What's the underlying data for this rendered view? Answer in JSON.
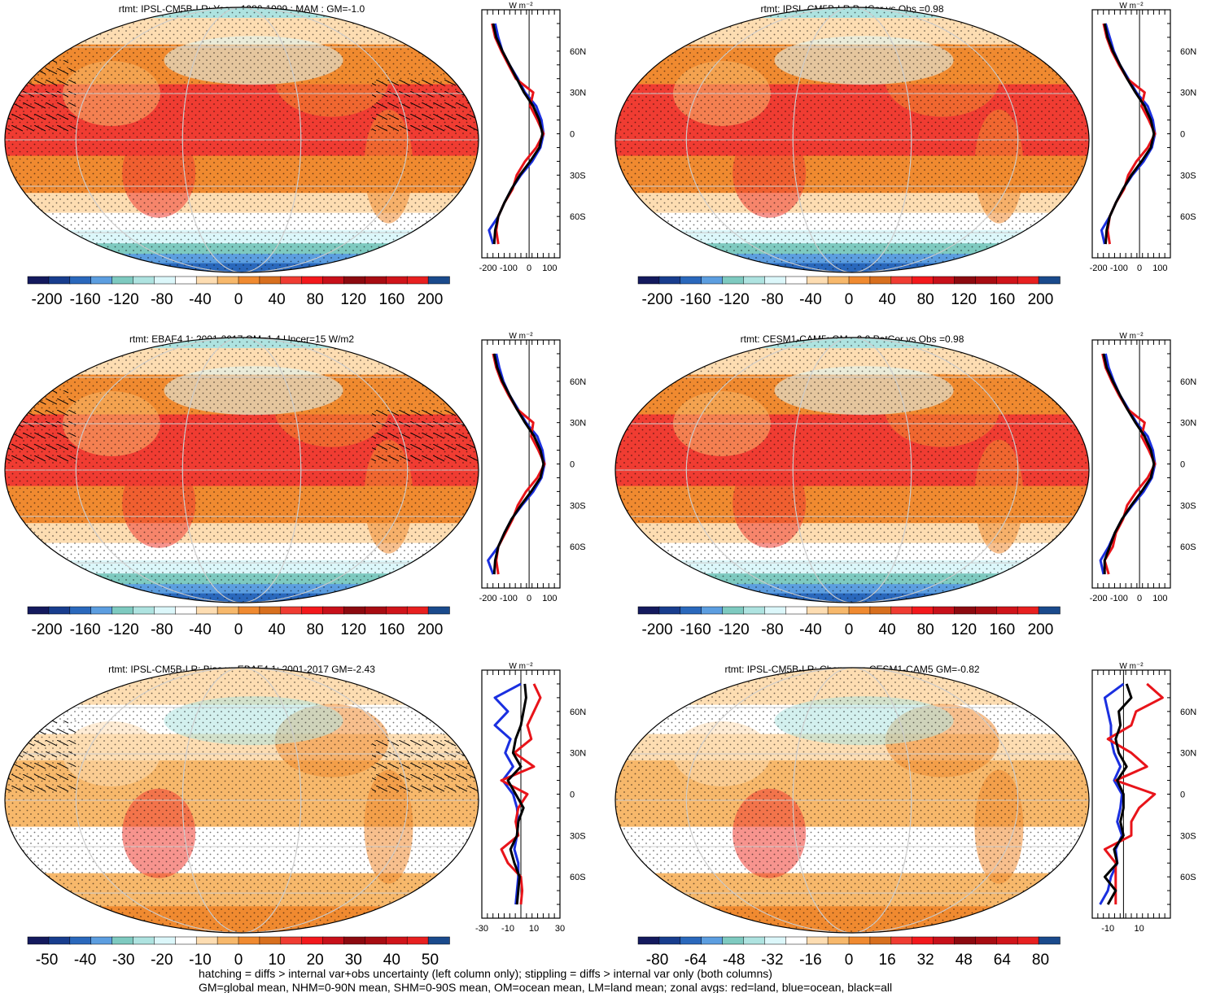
{
  "palette": [
    "#141a5e",
    "#183d8e",
    "#2a68bc",
    "#5c9ee0",
    "#7ecac0",
    "#aee3e0",
    "#dcf7fa",
    "#ffffff",
    "#fdddb2",
    "#f7b86b",
    "#f08a30",
    "#d86f1e",
    "#f03c32",
    "#f3181c",
    "#c8101a",
    "#8c0a10",
    "#a80c12",
    "#d0141a",
    "#e82020",
    "#1a4a8c"
  ],
  "footer": [
    "hatching = diffs > internal var+obs uncertainty (left column only); stippling = diffs > internal var only (both columns)",
    "GM=global mean, NHM=0-90N mean, SHM=0-90S mean, OM=ocean mean, LM=land mean; zonal avgs: red=land, blue=ocean, black=all"
  ],
  "chart_data": [
    {
      "type": "heatmap",
      "title": "rtmt: IPSL-CM5B-LR: Years 1980-1999 : MAM : GM=-1.0",
      "colorbar_ticks": [
        "-200",
        "-160",
        "-120",
        "-80",
        "-40",
        "0",
        "40",
        "80",
        "120",
        "160",
        "200"
      ],
      "colorbar_range": [
        -200,
        200
      ],
      "zonal": {
        "unit": "W m⁻²",
        "lat_ticks": [
          "60N",
          "30N",
          "0",
          "30S",
          "60S"
        ],
        "x_ticks": [
          "-200",
          "-100",
          "0",
          "100"
        ],
        "xlim": [
          -230,
          150
        ],
        "lat": [
          -80,
          -70,
          -60,
          -50,
          -40,
          -30,
          -20,
          -10,
          0,
          10,
          20,
          30,
          40,
          50,
          60,
          70,
          80
        ],
        "all": [
          -170,
          -165,
          -150,
          -120,
          -85,
          -45,
          5,
          50,
          65,
          50,
          20,
          -25,
          -60,
          -95,
          -130,
          -160,
          -175
        ],
        "ocean": [
          -175,
          -195,
          -150,
          -120,
          -85,
          -40,
          15,
          55,
          70,
          60,
          35,
          -20,
          -55,
          -95,
          -130,
          -150,
          -165
        ],
        "land": [
          -150,
          -160,
          -150,
          -120,
          -80,
          -60,
          -20,
          35,
          70,
          40,
          5,
          20,
          -65,
          -100,
          -135,
          -165,
          -180
        ]
      }
    },
    {
      "type": "heatmap",
      "title": "rtmt: IPSL-CM5B-LR PatCor vs Obs =0.98",
      "colorbar_ticks": [
        "-200",
        "-160",
        "-120",
        "-80",
        "-40",
        "0",
        "40",
        "80",
        "120",
        "160",
        "200"
      ],
      "colorbar_range": [
        -200,
        200
      ],
      "zonal": {
        "unit": "W m⁻²",
        "lat_ticks": [
          "60N",
          "30N",
          "0",
          "30S",
          "60S"
        ],
        "x_ticks": [
          "-200",
          "-100",
          "0",
          "100"
        ],
        "xlim": [
          -230,
          150
        ],
        "lat": [
          -80,
          -70,
          -60,
          -50,
          -40,
          -30,
          -20,
          -10,
          0,
          10,
          20,
          30,
          40,
          50,
          60,
          70,
          80
        ],
        "all": [
          -165,
          -160,
          -145,
          -115,
          -80,
          -40,
          10,
          55,
          70,
          55,
          25,
          -20,
          -60,
          -95,
          -130,
          -155,
          -170
        ],
        "ocean": [
          -170,
          -185,
          -145,
          -115,
          -80,
          -35,
          20,
          60,
          75,
          65,
          40,
          -15,
          -55,
          -95,
          -125,
          -145,
          -165
        ],
        "land": [
          -145,
          -155,
          -145,
          -115,
          -75,
          -55,
          -15,
          40,
          75,
          45,
          10,
          25,
          -60,
          -100,
          -135,
          -160,
          -175
        ]
      }
    },
    {
      "type": "heatmap",
      "title": "rtmt: EBAF4.1: 2001-2017 GM=1.4 Uncer=15 W/m2",
      "colorbar_ticks": [
        "-200",
        "-160",
        "-120",
        "-80",
        "-40",
        "0",
        "40",
        "80",
        "120",
        "160",
        "200"
      ],
      "colorbar_range": [
        -200,
        200
      ],
      "zonal": {
        "unit": "W m⁻²",
        "lat_ticks": [
          "60N",
          "30N",
          "0",
          "30S",
          "60S"
        ],
        "x_ticks": [
          "-200",
          "-100",
          "0",
          "100"
        ],
        "xlim": [
          -230,
          150
        ],
        "lat": [
          -80,
          -70,
          -60,
          -50,
          -40,
          -30,
          -20,
          -10,
          0,
          10,
          20,
          30,
          40,
          50,
          60,
          70,
          80
        ],
        "all": [
          -170,
          -165,
          -150,
          -120,
          -85,
          -40,
          10,
          55,
          70,
          55,
          25,
          -20,
          -60,
          -95,
          -130,
          -155,
          -170
        ],
        "ocean": [
          -175,
          -200,
          -150,
          -120,
          -85,
          -35,
          20,
          60,
          75,
          65,
          40,
          -15,
          -55,
          -95,
          -125,
          -145,
          -160
        ],
        "land": [
          -150,
          -160,
          -150,
          -115,
          -80,
          -55,
          -15,
          40,
          75,
          45,
          10,
          20,
          -60,
          -100,
          -135,
          -160,
          -175
        ]
      }
    },
    {
      "type": "heatmap",
      "title": "rtmt: CESM1-CAM5: GM=-0.2 PatCor vs Obs =0.98",
      "colorbar_ticks": [
        "-200",
        "-160",
        "-120",
        "-80",
        "-40",
        "0",
        "40",
        "80",
        "120",
        "160",
        "200"
      ],
      "colorbar_range": [
        -200,
        200
      ],
      "zonal": {
        "unit": "W m⁻²",
        "lat_ticks": [
          "60N",
          "30N",
          "0",
          "30S",
          "60S"
        ],
        "x_ticks": [
          "-200",
          "-100",
          "0",
          "100"
        ],
        "xlim": [
          -230,
          150
        ],
        "lat": [
          -80,
          -70,
          -60,
          -50,
          -40,
          -30,
          -20,
          -10,
          0,
          10,
          20,
          30,
          40,
          50,
          60,
          70,
          80
        ],
        "all": [
          -170,
          -170,
          -145,
          -120,
          -85,
          -40,
          10,
          55,
          70,
          55,
          25,
          -20,
          -60,
          -95,
          -130,
          -160,
          -175
        ],
        "ocean": [
          -175,
          -190,
          -150,
          -120,
          -85,
          -35,
          20,
          60,
          75,
          65,
          40,
          -15,
          -55,
          -95,
          -125,
          -150,
          -165
        ],
        "land": [
          -150,
          -170,
          -130,
          -115,
          -80,
          -60,
          -15,
          40,
          75,
          45,
          10,
          25,
          -60,
          -100,
          -135,
          -165,
          -180
        ]
      }
    },
    {
      "type": "heatmap",
      "title": "rtmt: IPSL-CM5B-LR: Bias vs EBAF4.1: 2001-2017 GM=-2.43",
      "colorbar_ticks": [
        "-50",
        "-40",
        "-30",
        "-20",
        "-10",
        "0",
        "10",
        "20",
        "30",
        "40",
        "50"
      ],
      "colorbar_range": [
        -50,
        50
      ],
      "zonal": {
        "unit": "W m⁻²",
        "lat_ticks": [
          "60N",
          "30N",
          "0",
          "30S",
          "60S"
        ],
        "x_ticks": [
          "-30",
          "-10",
          "10",
          "30"
        ],
        "xlim": [
          -30,
          30
        ],
        "lat": [
          -80,
          -70,
          -60,
          -50,
          -40,
          -30,
          -20,
          -10,
          0,
          10,
          20,
          30,
          40,
          50,
          60,
          70,
          80
        ],
        "all": [
          -3,
          -2,
          -1,
          -5,
          -8,
          -3,
          -2,
          2,
          -4,
          -10,
          0,
          -6,
          -4,
          0,
          2,
          4,
          3
        ],
        "ocean": [
          -4,
          -3,
          -2,
          -2,
          -5,
          -3,
          -2,
          -3,
          -6,
          -14,
          -6,
          -12,
          -8,
          -20,
          -10,
          -20,
          0
        ],
        "land": [
          0,
          1,
          0,
          -10,
          -15,
          -2,
          -4,
          -2,
          5,
          -15,
          10,
          -5,
          8,
          5,
          10,
          15,
          10
        ]
      }
    },
    {
      "type": "heatmap",
      "title": "rtmt: IPSL-CM5B-LR: Change vs CESM1-CAM5 GM=-0.82",
      "colorbar_ticks": [
        "-80",
        "-64",
        "-48",
        "-32",
        "-16",
        "0",
        "16",
        "32",
        "48",
        "64",
        "80"
      ],
      "colorbar_range": [
        -80,
        80
      ],
      "zonal": {
        "unit": "W m⁻²",
        "lat_ticks": [
          "60N",
          "30N",
          "0",
          "30S",
          "60S"
        ],
        "x_ticks": [
          "-10",
          "10"
        ],
        "xlim": [
          -20,
          30
        ],
        "lat": [
          -80,
          -70,
          -60,
          -50,
          -40,
          -30,
          -20,
          -10,
          0,
          10,
          20,
          30,
          40,
          50,
          60,
          70,
          80
        ],
        "all": [
          -10,
          -5,
          -12,
          -4,
          -6,
          0,
          -2,
          0,
          0,
          -4,
          2,
          -3,
          -5,
          -2,
          -3,
          5,
          2
        ],
        "ocean": [
          -15,
          -10,
          -8,
          -4,
          -5,
          -1,
          -4,
          -2,
          -1,
          -6,
          -2,
          -6,
          -8,
          -8,
          -10,
          -12,
          0
        ],
        "land": [
          -5,
          -5,
          -5,
          -5,
          -12,
          5,
          5,
          10,
          20,
          -5,
          15,
          5,
          -10,
          5,
          8,
          25,
          15
        ]
      }
    }
  ]
}
